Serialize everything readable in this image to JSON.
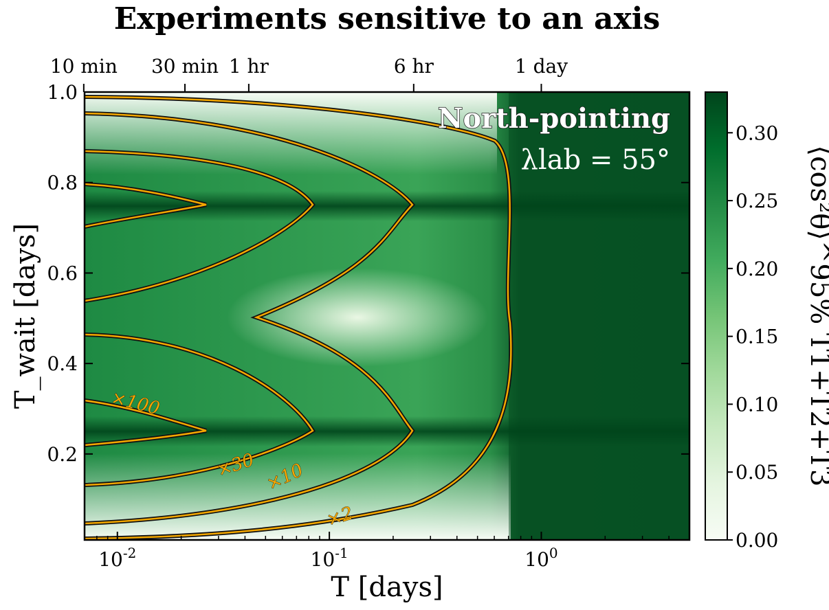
{
  "chart_data": {
    "type": "heatmap",
    "title": "Experiments sensitive to an axis",
    "xlabel": "T [days]",
    "ylabel": "T_wait [days]",
    "x_scale": "log",
    "xlim": [
      0.007,
      5
    ],
    "ylim": [
      0.01,
      1.0
    ],
    "x_ticks": [
      {
        "value": 0.01,
        "label": "10^-2"
      },
      {
        "value": 0.1,
        "label": "10^-1"
      },
      {
        "value": 1,
        "label": "10^0"
      }
    ],
    "y_ticks": [
      {
        "value": 0.2,
        "label": "0.2"
      },
      {
        "value": 0.4,
        "label": "0.4"
      },
      {
        "value": 0.6,
        "label": "0.6"
      },
      {
        "value": 0.8,
        "label": "0.8"
      },
      {
        "value": 1.0,
        "label": "1.0"
      }
    ],
    "top_ticks": [
      {
        "value": 0.00694,
        "label": "10 min"
      },
      {
        "value": 0.02083,
        "label": "30 min"
      },
      {
        "value": 0.04167,
        "label": "1 hr"
      },
      {
        "value": 0.25,
        "label": "6 hr"
      },
      {
        "value": 1.0,
        "label": "1 day"
      }
    ],
    "colorbar": {
      "label": "⟨cos²θ⟩^95% T1+T2+T3",
      "range": [
        0,
        0.33
      ],
      "ticks": [
        "0.00",
        "0.05",
        "0.10",
        "0.15",
        "0.20",
        "0.25",
        "0.30"
      ],
      "tick_values": [
        0,
        0.05,
        0.1,
        0.15,
        0.2,
        0.25,
        0.3
      ],
      "colormap": "Greens",
      "low_color": "#f7fcf5",
      "high_color": "#00441b"
    },
    "annotation": {
      "line1": "North-pointing",
      "line2": "λlab = 55°"
    },
    "contour_color": "#f5a800",
    "contours": [
      {
        "label": "×100",
        "label_value": 100
      },
      {
        "label": "×30",
        "label_value": 30
      },
      {
        "label": "×10",
        "label_value": 10
      },
      {
        "label": "×2",
        "label_value": 2
      }
    ]
  }
}
